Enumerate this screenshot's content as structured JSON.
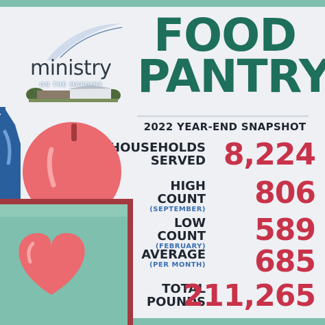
{
  "logo": {
    "word": "ministry",
    "tagline": "ON THE MARGINS",
    "icon": "ministry-logo-building"
  },
  "title": {
    "line1": "FOOD",
    "line2": "PANTRY"
  },
  "subtitle": "2022 YEAR-END SNAPSHOT",
  "stats": [
    {
      "label_line1": "HOUSEHOLDS",
      "label_line2": "SERVED",
      "sub": "",
      "value": "8,224"
    },
    {
      "label_line1": "HIGH COUNT",
      "label_line2": "",
      "sub": "(SEPTEMBER)",
      "value": "806"
    },
    {
      "label_line1": "LOW COUNT",
      "label_line2": "",
      "sub": "(FEBRUARY)",
      "value": "589"
    },
    {
      "label_line1": "AVERAGE",
      "label_line2": "",
      "sub": "(PER MONTH)",
      "value": "685"
    },
    {
      "label_line1": "TOTAL",
      "label_line2": "POUNDS",
      "sub": "",
      "value": "211,265"
    }
  ],
  "colors": {
    "title_green": "#1e6f5c",
    "value_red": "#c8334a",
    "frame_teal": "#7fbfae",
    "sub_blue": "#3a6fb0"
  },
  "illustration": {
    "icons": [
      "water-bottle-icon",
      "apple-icon",
      "box-icon",
      "heart-icon"
    ]
  }
}
